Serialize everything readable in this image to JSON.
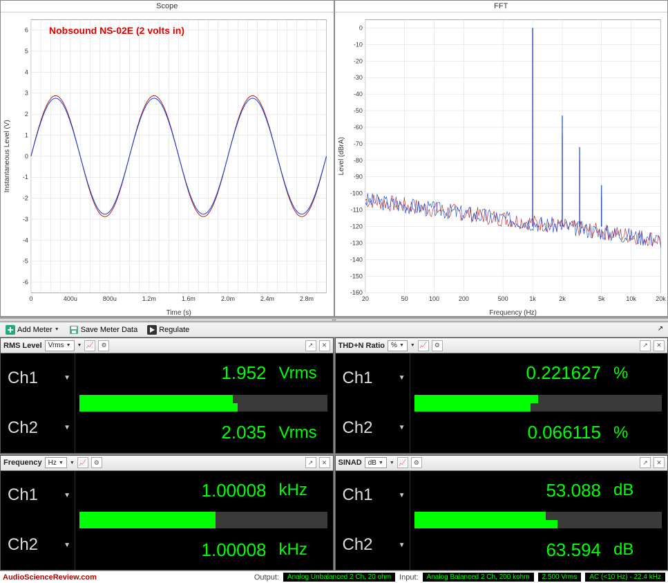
{
  "overlay_label": "Nobsound NS-02E (2 volts in)",
  "chart_colors": {
    "ch1": "#1040d0",
    "ch2": "#b02020",
    "grid": "#d8d8d8",
    "axis": "#555555",
    "bg": "#ffffff"
  },
  "scope": {
    "title": "Scope",
    "xlabel": "Time (s)",
    "ylabel": "Instantaneous Level (V)",
    "xticks": [
      "0",
      "400u",
      "800u",
      "1.2m",
      "1.6m",
      "2.0m",
      "2.4m",
      "2.8m"
    ],
    "yticks": [
      "-6",
      "-5",
      "-4",
      "-3",
      "-2",
      "-1",
      "0",
      "1",
      "2",
      "3",
      "4",
      "5",
      "6"
    ],
    "ylim": [
      -6.5,
      6.5
    ],
    "xlim": [
      0,
      3.0
    ],
    "amplitude_ch1": 2.76,
    "amplitude_ch2": 2.88,
    "cycles": 3
  },
  "fft": {
    "title": "FFT",
    "xlabel": "Frequency (Hz)",
    "ylabel": "Level (dBrA)",
    "xticks": [
      "20",
      "50",
      "100",
      "200",
      "500",
      "1k",
      "2k",
      "5k",
      "10k",
      "20k"
    ],
    "yticks": [
      "-160",
      "-150",
      "-140",
      "-130",
      "-120",
      "-110",
      "-100",
      "-90",
      "-80",
      "-70",
      "-60",
      "-50",
      "-40",
      "-30",
      "-20",
      "-10",
      "0"
    ],
    "ylim": [
      -160,
      5
    ],
    "noise_floor_start": -104,
    "noise_floor_end": -128,
    "fundamental_hz": 1000,
    "harmonics": [
      {
        "hz": 1000,
        "db_ch1": 0,
        "db_ch2": 0
      },
      {
        "hz": 2000,
        "db_ch1": -53,
        "db_ch2": -64
      },
      {
        "hz": 3000,
        "db_ch1": -72,
        "db_ch2": -80
      },
      {
        "hz": 5000,
        "db_ch1": -95,
        "db_ch2": -102
      }
    ]
  },
  "toolbar": {
    "add_meter": "Add Meter",
    "save_meter": "Save Meter Data",
    "regulate": "Regulate"
  },
  "meters": {
    "rms": {
      "title": "RMS Level",
      "unit_selector": "Vrms",
      "ch1": {
        "label": "Ch1",
        "value": "1.952",
        "unit": "Vrms",
        "bar": 0.62
      },
      "ch2": {
        "label": "Ch2",
        "value": "2.035",
        "unit": "Vrms",
        "bar": 0.64
      }
    },
    "thdn": {
      "title": "THD+N Ratio",
      "unit_selector": "%",
      "ch1": {
        "label": "Ch1",
        "value": "0.221627",
        "unit": "%",
        "bar": 0.5
      },
      "ch2": {
        "label": "Ch2",
        "value": "0.066115",
        "unit": "%",
        "bar": 0.47
      }
    },
    "freq": {
      "title": "Frequency",
      "unit_selector": "Hz",
      "ch1": {
        "label": "Ch1",
        "value": "1.00008",
        "unit": "kHz",
        "bar": 0.55
      },
      "ch2": {
        "label": "Ch2",
        "value": "1.00008",
        "unit": "kHz",
        "bar": 0.55
      }
    },
    "sinad": {
      "title": "SINAD",
      "unit_selector": "dB",
      "ch1": {
        "label": "Ch1",
        "value": "53.088",
        "unit": "dB",
        "bar": 0.53
      },
      "ch2": {
        "label": "Ch2",
        "value": "63.594",
        "unit": "dB",
        "bar": 0.58
      }
    }
  },
  "footer": {
    "url": "AudioScienceReview.com",
    "output_label": "Output:",
    "output_badge": "Analog Unbalanced 2 Ch, 20 ohm",
    "input_label": "Input:",
    "input_badge1": "Analog Balanced 2 Ch, 200 kohm",
    "input_badge2": "2.500 Vrms",
    "input_badge3": "AC (<10 Hz) - 22.4 kHz"
  }
}
